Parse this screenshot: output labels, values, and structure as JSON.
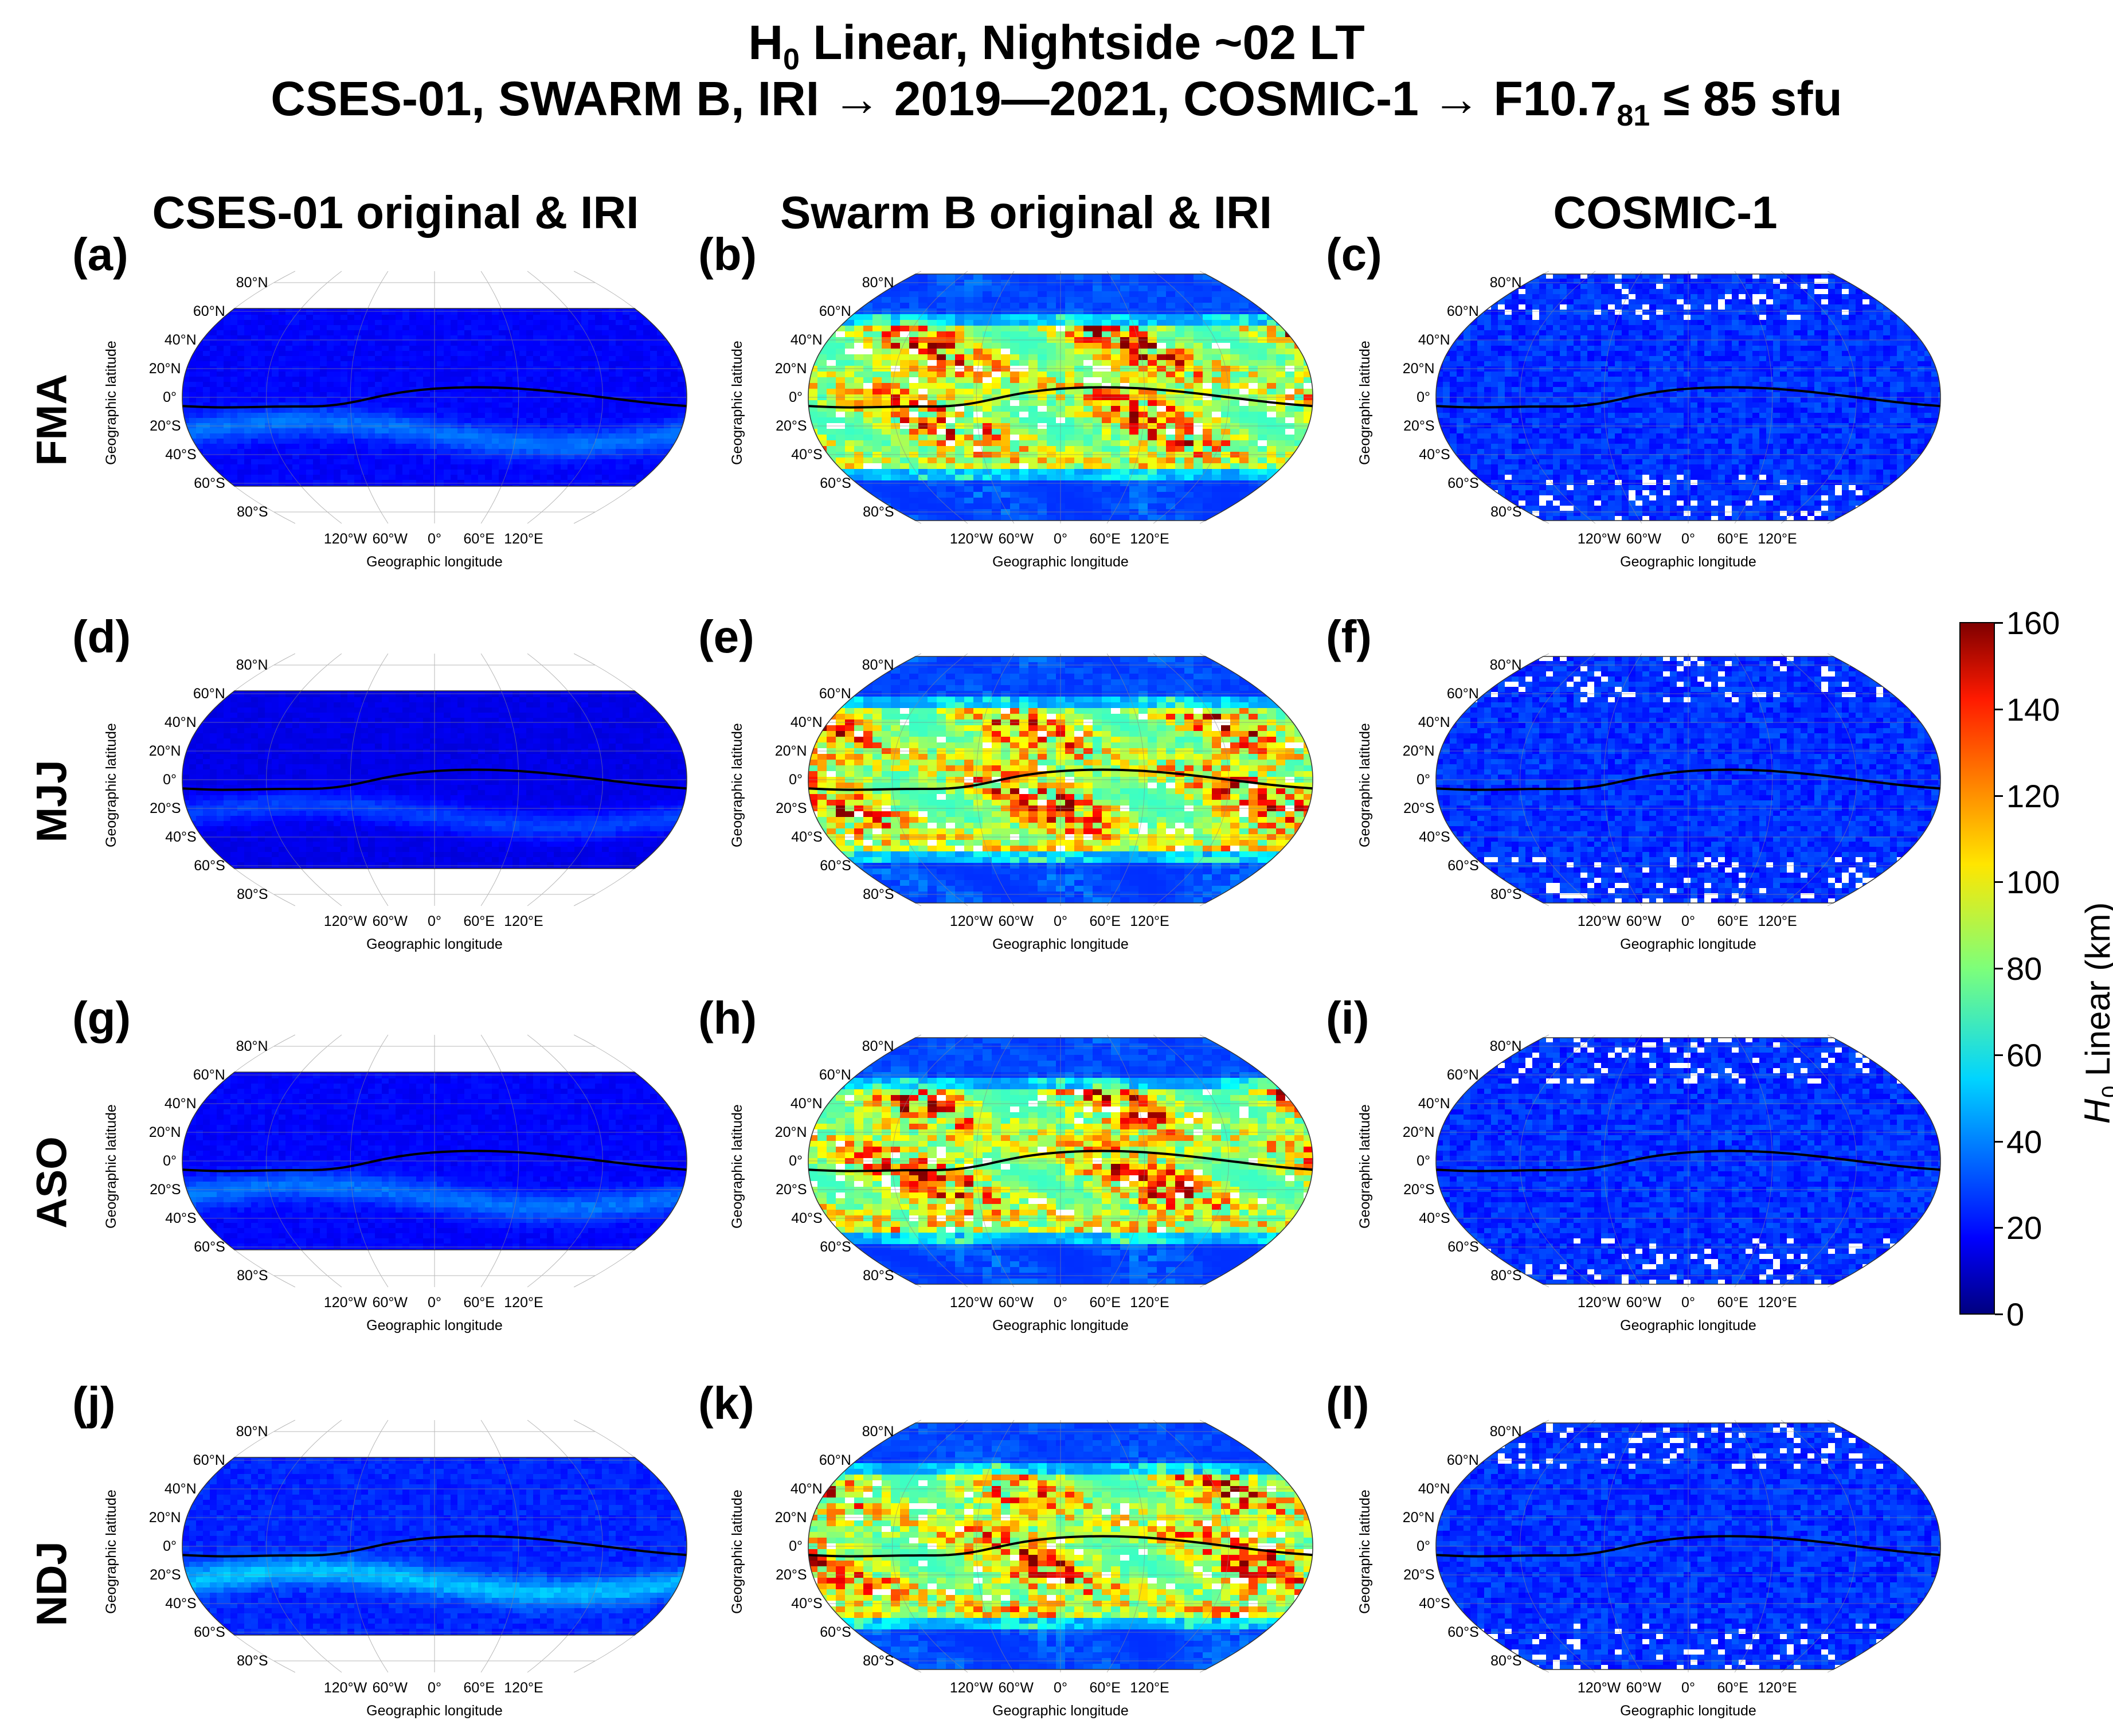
{
  "title": {
    "line1_H": "H",
    "line1_sub": "0",
    "line1_rest": " Linear, Nightside ~02 LT",
    "line2_main": "CSES-01, SWARM B, IRI → 2019—2021,  COSMIC-1 → F10.7",
    "line2_sub": "81",
    "line2_tail": " ≤ 85 sfu"
  },
  "columns": [
    "CSES-01 original & IRI",
    "Swarm B original & IRI",
    "COSMIC-1"
  ],
  "rows": [
    "FMA",
    "MJJ",
    "ASO",
    "NDJ"
  ],
  "panel_letters": [
    "(a)",
    "(b)",
    "(c)",
    "(d)",
    "(e)",
    "(f)",
    "(g)",
    "(h)",
    "(i)",
    "(j)",
    "(k)",
    "(l)"
  ],
  "axis": {
    "xlabel": "Geographic longitude",
    "ylabel": "Geographic latitude",
    "lat_ticks": [
      "80°N",
      "60°N",
      "40°N",
      "20°N",
      "0°",
      "20°S",
      "40°S",
      "60°S",
      "80°S"
    ],
    "lon_ticks": [
      "120°W",
      "60°W",
      "0°",
      "60°E",
      "120°E"
    ]
  },
  "colorbar": {
    "label_var": "H",
    "label_sub": "0",
    "label_rest": " Linear (km)",
    "ticks": [
      "0",
      "20",
      "40",
      "60",
      "80",
      "100",
      "120",
      "140",
      "160"
    ],
    "range": [
      0,
      160
    ],
    "colormap": "jet"
  },
  "chart_data": [
    {
      "type": "heatmap",
      "panel": "(a)",
      "dataset": "CSES-01 original & IRI",
      "season": "FMA",
      "approx_level_km": 18,
      "level_range_km": [
        5,
        45
      ],
      "xlabel": "Geographic longitude",
      "ylabel": "Geographic latitude"
    },
    {
      "type": "heatmap",
      "panel": "(b)",
      "dataset": "Swarm B original & IRI",
      "season": "FMA",
      "approx_level_km": 110,
      "level_range_km": [
        20,
        160
      ],
      "xlabel": "Geographic longitude",
      "ylabel": "Geographic latitude"
    },
    {
      "type": "heatmap",
      "panel": "(c)",
      "dataset": "COSMIC-1",
      "season": "FMA",
      "approx_level_km": 22,
      "level_range_km": [
        10,
        40
      ],
      "xlabel": "Geographic longitude",
      "ylabel": "Geographic latitude"
    },
    {
      "type": "heatmap",
      "panel": "(d)",
      "dataset": "CSES-01 original & IRI",
      "season": "MJJ",
      "approx_level_km": 16,
      "level_range_km": [
        5,
        35
      ],
      "xlabel": "Geographic longitude",
      "ylabel": "Geographic latitude"
    },
    {
      "type": "heatmap",
      "panel": "(e)",
      "dataset": "Swarm B original & IRI",
      "season": "MJJ",
      "approx_level_km": 105,
      "level_range_km": [
        20,
        160
      ],
      "xlabel": "Geographic longitude",
      "ylabel": "Geographic latitude"
    },
    {
      "type": "heatmap",
      "panel": "(f)",
      "dataset": "COSMIC-1",
      "season": "MJJ",
      "approx_level_km": 22,
      "level_range_km": [
        10,
        40
      ],
      "xlabel": "Geographic longitude",
      "ylabel": "Geographic latitude"
    },
    {
      "type": "heatmap",
      "panel": "(g)",
      "dataset": "CSES-01 original & IRI",
      "season": "ASO",
      "approx_level_km": 18,
      "level_range_km": [
        5,
        45
      ],
      "xlabel": "Geographic longitude",
      "ylabel": "Geographic latitude"
    },
    {
      "type": "heatmap",
      "panel": "(h)",
      "dataset": "Swarm B original & IRI",
      "season": "ASO",
      "approx_level_km": 110,
      "level_range_km": [
        20,
        160
      ],
      "xlabel": "Geographic longitude",
      "ylabel": "Geographic latitude"
    },
    {
      "type": "heatmap",
      "panel": "(i)",
      "dataset": "COSMIC-1",
      "season": "ASO",
      "approx_level_km": 22,
      "level_range_km": [
        10,
        40
      ],
      "xlabel": "Geographic longitude",
      "ylabel": "Geographic latitude"
    },
    {
      "type": "heatmap",
      "panel": "(j)",
      "dataset": "CSES-01 original & IRI",
      "season": "NDJ",
      "approx_level_km": 22,
      "level_range_km": [
        5,
        60
      ],
      "xlabel": "Geographic longitude",
      "ylabel": "Geographic latitude"
    },
    {
      "type": "heatmap",
      "panel": "(k)",
      "dataset": "Swarm B original & IRI",
      "season": "NDJ",
      "approx_level_km": 120,
      "level_range_km": [
        20,
        160
      ],
      "xlabel": "Geographic longitude",
      "ylabel": "Geographic latitude"
    },
    {
      "type": "heatmap",
      "panel": "(l)",
      "dataset": "COSMIC-1",
      "season": "NDJ",
      "approx_level_km": 22,
      "level_range_km": [
        10,
        40
      ],
      "xlabel": "Geographic longitude",
      "ylabel": "Geographic latitude"
    }
  ]
}
